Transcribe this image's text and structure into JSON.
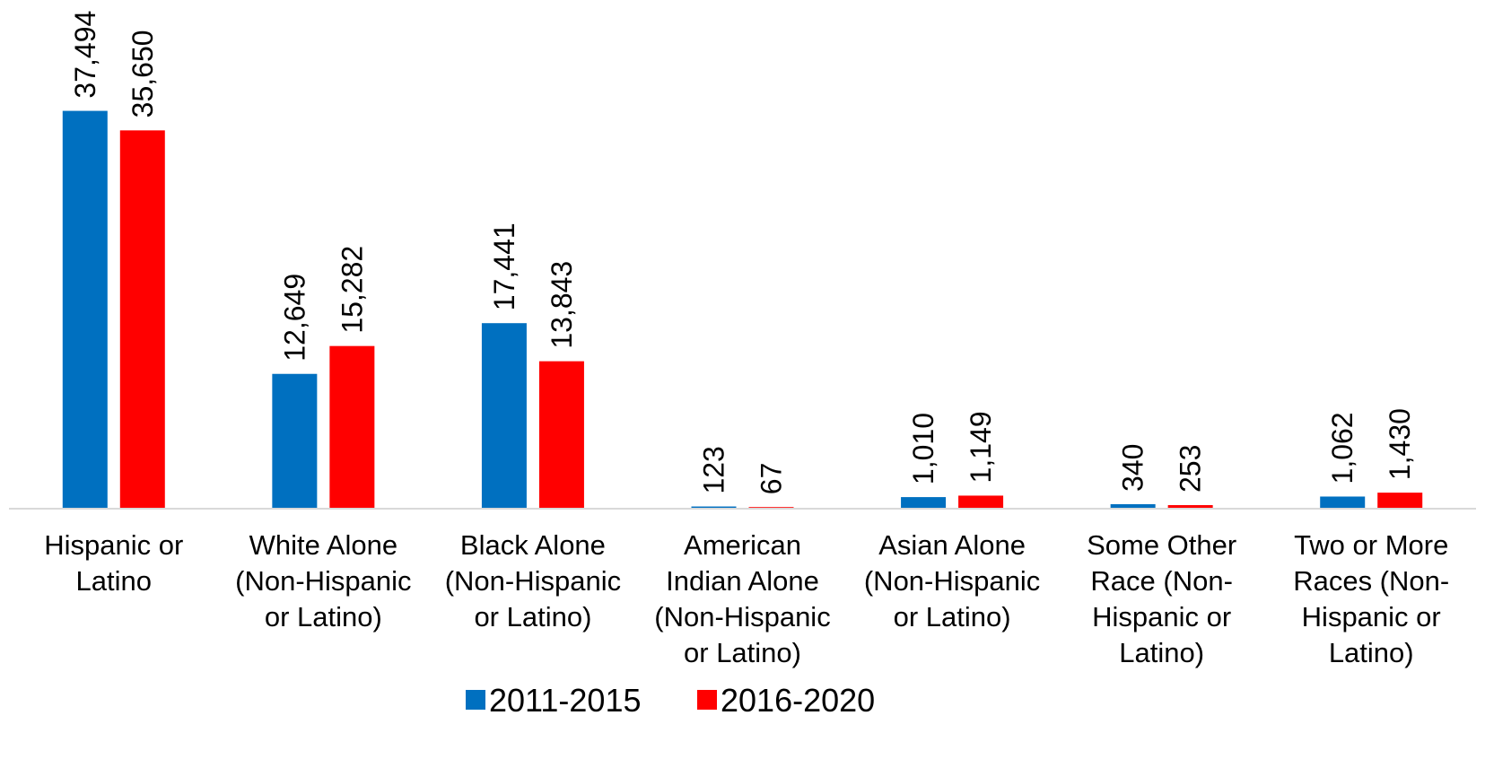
{
  "chart_data": {
    "type": "bar",
    "title": "",
    "xlabel": "",
    "ylabel": "",
    "ylim": [
      0,
      40000
    ],
    "grid": false,
    "legend_position": "bottom",
    "categories": [
      [
        "Hispanic or",
        "Latino"
      ],
      [
        "White Alone",
        "(Non-Hispanic",
        "or Latino)"
      ],
      [
        "Black Alone",
        "(Non-Hispanic",
        "or Latino)"
      ],
      [
        "American",
        "Indian Alone",
        "(Non-Hispanic",
        "or Latino)"
      ],
      [
        "Asian Alone",
        "(Non-Hispanic",
        "or Latino)"
      ],
      [
        "Some Other",
        "Race (Non-",
        "Hispanic or",
        "Latino)"
      ],
      [
        "Two or More",
        "Races (Non-",
        "Hispanic or",
        "Latino)"
      ]
    ],
    "series": [
      {
        "name": "2011-2015",
        "color": "#0070C0",
        "values": [
          37494,
          12649,
          17441,
          123,
          1010,
          340,
          1062
        ],
        "labels": [
          "37,494",
          "12,649",
          "17,441",
          "123",
          "1,010",
          "340",
          "1,062"
        ]
      },
      {
        "name": "2016-2020",
        "color": "#FF0000",
        "values": [
          35650,
          15282,
          13843,
          67,
          1149,
          253,
          1430
        ],
        "labels": [
          "35,650",
          "15,282",
          "13,843",
          "67",
          "1,149",
          "253",
          "1,430"
        ]
      }
    ]
  }
}
